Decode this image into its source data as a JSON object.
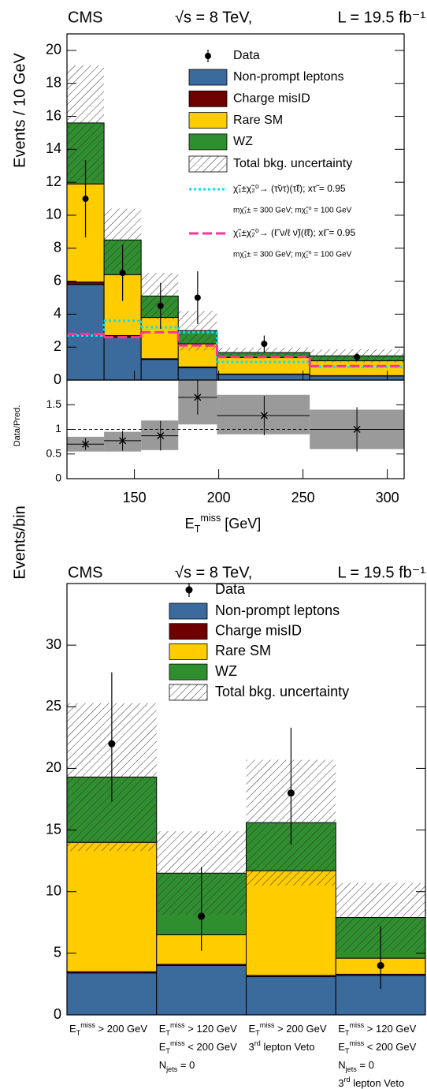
{
  "chart_data": [
    {
      "type": "stacked_histogram",
      "title": "CMS",
      "energy": "√s = 8 TeV,",
      "luminosity": "L  = 19.5 fb⁻¹",
      "ylabel": "Events / 10 GeV",
      "xlim": [
        110,
        310
      ],
      "ylim": [
        0,
        21
      ],
      "yticks": [
        0,
        2,
        4,
        6,
        8,
        10,
        12,
        14,
        16,
        18,
        20
      ],
      "bins": [
        110,
        132,
        154,
        176,
        199,
        254,
        310
      ],
      "series": [
        {
          "name": "Non-prompt leptons",
          "color": "#3b6b9c",
          "values": [
            5.8,
            2.6,
            1.25,
            0.75,
            0.35,
            0.25
          ]
        },
        {
          "name": "Charge misID",
          "color": "#6e0000",
          "values": [
            0.15,
            0.1,
            0.05,
            0.05,
            0.02,
            0.02
          ]
        },
        {
          "name": "Rare SM",
          "color": "#ffcc00",
          "values": [
            5.95,
            3.7,
            2.5,
            1.4,
            1.0,
            0.9
          ]
        },
        {
          "name": "WZ",
          "color": "#2f8f2f",
          "values": [
            3.7,
            2.1,
            1.3,
            0.8,
            0.3,
            0.3
          ]
        }
      ],
      "uncertainty": {
        "name": "Total bkg. uncertainty",
        "values": [
          3.5,
          1.9,
          1.4,
          1.2,
          0.3,
          0.4
        ]
      },
      "data": {
        "name": "Data",
        "x": [
          121,
          143,
          165.5,
          187.5,
          227,
          282
        ],
        "values": [
          11,
          6.5,
          4.5,
          5,
          2.2,
          1.4
        ],
        "errors": [
          2.35,
          1.7,
          1.4,
          1.6,
          0.5,
          0.25
        ]
      },
      "signals": [
        {
          "name": "χ̃₁±χ̃₂⁰→ (τ̃ντ)(τ̃ℓ); xτ̃ = 0.95",
          "mass_label": "mχ̃₁± = 300 GeV; mχ̃₁⁰ = 100 GeV",
          "color": "#00e5ff",
          "style": "dotted",
          "values": [
            2.7,
            3.6,
            3.2,
            2.9,
            1.1,
            0.8
          ]
        },
        {
          "name": "χ̃₁±χ̃₂⁰→ (ℓ̃ ν/ℓ ν̃)(ℓ̃ℓ); xℓ̃ = 0.95",
          "mass_label": "mχ̃₁± = 300 GeV; mχ̃₁⁰ = 100 GeV",
          "color": "#ff3399",
          "style": "dashed",
          "values": [
            2.8,
            2.6,
            2.9,
            2.1,
            1.4,
            0.85
          ]
        }
      ]
    },
    {
      "type": "ratio",
      "ylabel": "Data/Pred.",
      "xlim": [
        110,
        310
      ],
      "xticks": [
        150,
        200,
        250,
        300
      ],
      "ylim": [
        0,
        2
      ],
      "yticks": [
        0,
        0.5,
        1,
        1.5
      ],
      "xlabel": [
        {
          "text": "E"
        },
        {
          "text": "T",
          "shift": "sub"
        },
        {
          "text": "miss",
          "shift": "super"
        },
        {
          "text": " [GeV]"
        }
      ],
      "bins": [
        110,
        132,
        154,
        176,
        199,
        254,
        310
      ],
      "reference": 1,
      "x": [
        121,
        143,
        165.5,
        187.5,
        227,
        282
      ],
      "values": [
        0.7,
        0.77,
        0.87,
        1.65,
        1.28,
        1.0
      ],
      "errors": [
        0.12,
        0.2,
        0.3,
        0.35,
        0.4,
        0.45
      ],
      "band_low": [
        0.55,
        0.55,
        0.58,
        1.1,
        0.9,
        0.6
      ],
      "band_high": [
        0.85,
        0.95,
        1.18,
        2.0,
        1.7,
        1.4
      ]
    },
    {
      "type": "stacked_bar",
      "title": "CMS",
      "energy": "√s = 8 TeV,",
      "luminosity": "L  = 19.5 fb⁻¹",
      "ylabel": "Events/bin",
      "ylim": [
        0,
        35
      ],
      "yticks": [
        0,
        5,
        10,
        15,
        20,
        25,
        30
      ],
      "categories": [
        [
          [
            {
              "text": "E"
            },
            {
              "text": "T",
              "shift": "sub"
            },
            {
              "text": "miss",
              "shift": "super"
            },
            {
              "text": " > 200 GeV"
            }
          ]
        ],
        [
          [
            {
              "text": "E"
            },
            {
              "text": "T",
              "shift": "sub"
            },
            {
              "text": "miss",
              "shift": "super"
            },
            {
              "text": " > 120 GeV"
            }
          ],
          [
            {
              "text": "E"
            },
            {
              "text": "T",
              "shift": "sub"
            },
            {
              "text": "miss",
              "shift": "super"
            },
            {
              "text": " < 200 GeV"
            }
          ],
          [
            {
              "text": "N"
            },
            {
              "text": "jets",
              "shift": "sub"
            },
            {
              "text": " = 0"
            }
          ]
        ],
        [
          [
            {
              "text": "E"
            },
            {
              "text": "T",
              "shift": "sub"
            },
            {
              "text": "miss",
              "shift": "super"
            },
            {
              "text": " > 200 GeV"
            }
          ],
          [
            {
              "text": "3"
            },
            {
              "text": "rd",
              "shift": "super"
            },
            {
              "text": " lepton Veto"
            }
          ]
        ],
        [
          [
            {
              "text": "E"
            },
            {
              "text": "T",
              "shift": "sub"
            },
            {
              "text": "miss",
              "shift": "super"
            },
            {
              "text": " > 120 GeV"
            }
          ],
          [
            {
              "text": "E"
            },
            {
              "text": "T",
              "shift": "sub"
            },
            {
              "text": "miss",
              "shift": "super"
            },
            {
              "text": " < 200 GeV"
            }
          ],
          [
            {
              "text": "N"
            },
            {
              "text": "jets",
              "shift": "sub"
            },
            {
              "text": " = 0"
            }
          ],
          [
            {
              "text": "3"
            },
            {
              "text": "rd",
              "shift": "super"
            },
            {
              "text": " lepton Veto"
            }
          ]
        ]
      ],
      "series": [
        {
          "name": "Non-prompt leptons",
          "color": "#3b6b9c",
          "values": [
            3.4,
            4.0,
            3.1,
            3.2
          ]
        },
        {
          "name": "Charge misID",
          "color": "#6e0000",
          "values": [
            0.1,
            0.1,
            0.1,
            0.1
          ]
        },
        {
          "name": "Rare SM",
          "color": "#ffcc00",
          "values": [
            10.5,
            2.4,
            8.5,
            1.3
          ]
        },
        {
          "name": "WZ",
          "color": "#2f8f2f",
          "values": [
            5.3,
            5.0,
            3.9,
            3.3
          ]
        }
      ],
      "uncertainty": {
        "name": "Total bkg. uncertainty",
        "values": [
          6.0,
          3.4,
          5.1,
          2.8
        ]
      },
      "data": {
        "name": "Data",
        "values": [
          22,
          8,
          18,
          4
        ],
        "err_low": [
          4.7,
          2.8,
          4.2,
          1.9
        ],
        "err_high": [
          5.8,
          4.0,
          5.3,
          3.2
        ]
      }
    }
  ]
}
